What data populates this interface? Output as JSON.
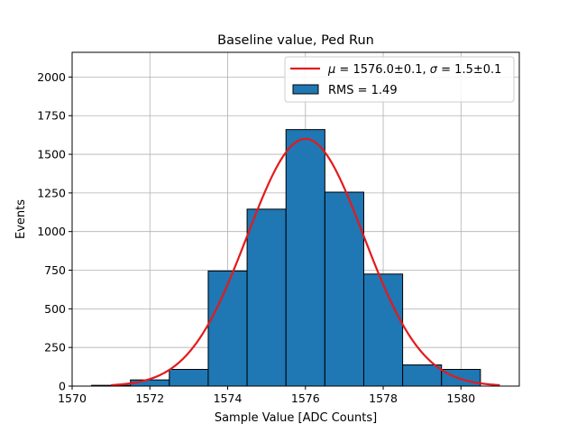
{
  "chart_data": {
    "type": "bar",
    "title": "Baseline value, Ped Run",
    "xlabel": "Sample Value [ADC Counts]",
    "ylabel": "Events",
    "xlim": [
      1570,
      1581.5
    ],
    "ylim": [
      0,
      2160
    ],
    "xticks": [
      1570,
      1572,
      1574,
      1576,
      1578,
      1580
    ],
    "yticks": [
      0,
      250,
      500,
      750,
      1000,
      1250,
      1500,
      1750,
      2000
    ],
    "grid": true,
    "legend_position": "top-right",
    "histogram": {
      "name": "RMS = 1.49",
      "color": "#1f77b4",
      "edgecolor": "#000000",
      "bins": [
        {
          "x0": 1570.5,
          "x1": 1571.5,
          "count": 5
        },
        {
          "x0": 1571.5,
          "x1": 1572.5,
          "count": 40
        },
        {
          "x0": 1572.5,
          "x1": 1573.5,
          "count": 108
        },
        {
          "x0": 1573.5,
          "x1": 1574.5,
          "count": 745
        },
        {
          "x0": 1574.5,
          "x1": 1575.5,
          "count": 1145
        },
        {
          "x0": 1575.5,
          "x1": 1576.5,
          "count": 1660
        },
        {
          "x0": 1576.5,
          "x1": 1577.5,
          "count": 1255
        },
        {
          "x0": 1577.5,
          "x1": 1578.5,
          "count": 725
        },
        {
          "x0": 1578.5,
          "x1": 1579.5,
          "count": 137
        },
        {
          "x0": 1579.5,
          "x1": 1580.5,
          "count": 108
        }
      ]
    },
    "fit": {
      "name_mu": "μ",
      "name_rest": " = 1576.0±0.1, ",
      "name_sigma": "σ",
      "name_tail": " = 1.5±0.1",
      "color": "#e31a1c",
      "type": "gaussian",
      "amplitude": 1600,
      "mean": 1576.0,
      "sigma": 1.5,
      "x_range": [
        1571.0,
        1581.0
      ]
    }
  }
}
